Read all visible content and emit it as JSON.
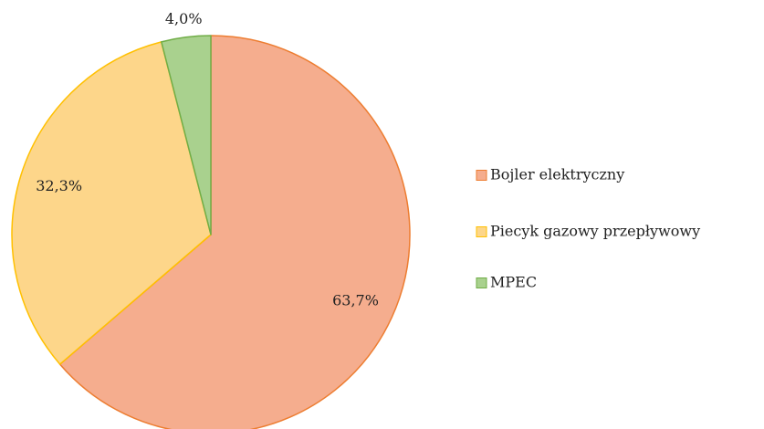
{
  "chart_data": {
    "type": "pie",
    "categories": [
      "Bojler elektryczny",
      "Piecyk gazowy przepływowy",
      "MPEC"
    ],
    "values": [
      63.7,
      32.3,
      4.0
    ],
    "value_labels": [
      "63,7%",
      "32,3%",
      "4,0%"
    ],
    "colors": [
      "#f5ad8e",
      "#fdd68a",
      "#a9d18e"
    ],
    "edge_colors": [
      "#ed7d31",
      "#ffc000",
      "#70ad47"
    ],
    "legend": "right"
  }
}
